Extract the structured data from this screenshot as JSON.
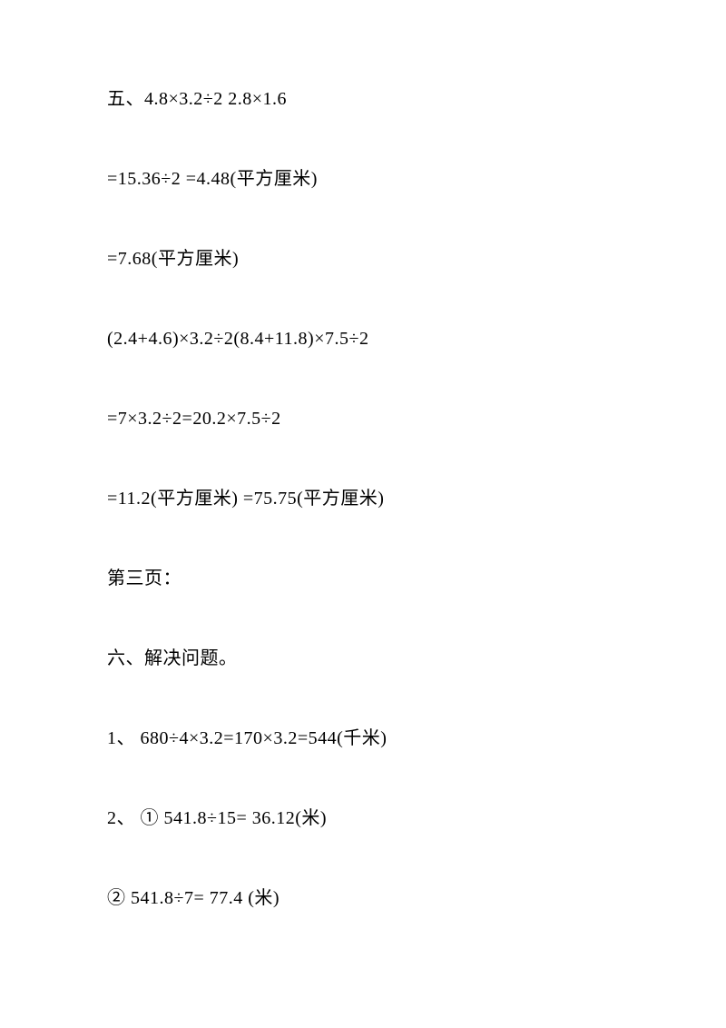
{
  "lines": [
    "五、4.8×3.2÷2 2.8×1.6",
    "=15.36÷2 =4.48(平方厘米)",
    "=7.68(平方厘米)",
    "(2.4+4.6)×3.2÷2(8.4+11.8)×7.5÷2",
    "=7×3.2÷2=20.2×7.5÷2",
    "=11.2(平方厘米) =75.75(平方厘米)",
    "第三页：",
    "六、解决问题。",
    "1、 680÷4×3.2=170×3.2=544(千米)",
    "2、 ① 541.8÷15= 36.12(米)",
    "② 541.8÷7= 77.4 (米)"
  ]
}
